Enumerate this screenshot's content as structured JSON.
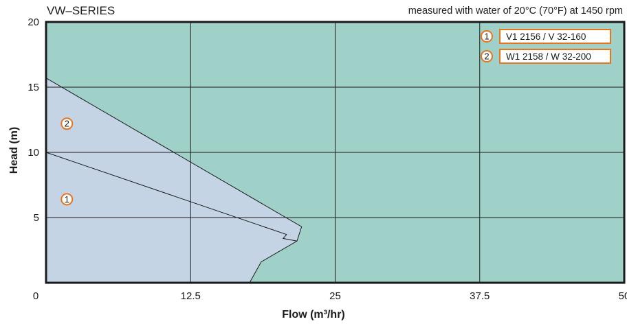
{
  "chart_data": {
    "type": "line",
    "title": "VW–SERIES",
    "subtitle": "measured with water of 20°C (70°F) at 1450 rpm",
    "xlabel": "Flow (m³/hr)",
    "ylabel": "Head (m)",
    "xlim": [
      0,
      50
    ],
    "ylim": [
      0,
      20
    ],
    "x_ticks": [
      "0",
      "12.5",
      "25",
      "37.5",
      "50"
    ],
    "y_ticks": [
      "5",
      "10",
      "15",
      "20"
    ],
    "grid": true,
    "colors": {
      "background": "#a0d1c9",
      "area": "#c5d4e5",
      "marker": "#e8741e",
      "line": "#1a1a1a"
    },
    "series": [
      {
        "marker": "1",
        "name": "V1 2156 / V 32-160",
        "x": [
          0,
          20.8,
          20.5,
          21.7
        ],
        "y": [
          10,
          3.7,
          3.4,
          3.2
        ]
      },
      {
        "marker": "2",
        "name": "W1 2158 / W 32-200",
        "x": [
          0,
          22.1,
          21.7,
          18.6,
          17.6
        ],
        "y": [
          15.7,
          4.3,
          3.2,
          1.6,
          0
        ]
      }
    ],
    "annotations": [
      {
        "label": "2",
        "x": 1.8,
        "y": 12.2
      },
      {
        "label": "1",
        "x": 1.8,
        "y": 6.4
      }
    ]
  }
}
